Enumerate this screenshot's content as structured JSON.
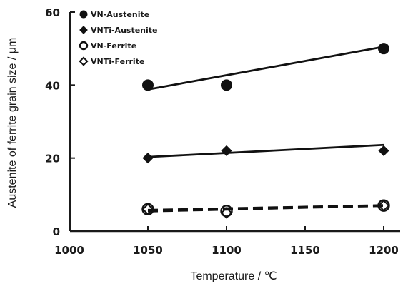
{
  "chart_data": {
    "type": "scatter",
    "title": "",
    "xlabel": "Temperature / ℃",
    "ylabel": "Austenite of ferrite grain size / μm",
    "xlim": [
      1000,
      1200
    ],
    "ylim": [
      0,
      60
    ],
    "x_ticks": [
      1000,
      1050,
      1100,
      1150,
      1200
    ],
    "y_ticks": [
      0,
      20,
      40,
      60
    ],
    "grid": false,
    "legend_position": "top-left",
    "series": [
      {
        "name": "VN-Austenite",
        "marker": "filled-circle",
        "x": [
          1050,
          1100,
          1200
        ],
        "y": [
          40,
          40,
          50
        ],
        "trend": {
          "style": "solid",
          "from": [
            1050,
            38.8
          ],
          "to": [
            1200,
            50.5
          ]
        }
      },
      {
        "name": "VNTi-Austenite",
        "marker": "filled-diamond",
        "x": [
          1050,
          1100,
          1200
        ],
        "y": [
          20,
          22,
          22
        ],
        "trend": {
          "style": "solid",
          "from": [
            1050,
            20.3
          ],
          "to": [
            1200,
            23.6
          ]
        }
      },
      {
        "name": "VN-Ferrite",
        "marker": "open-circle",
        "x": [
          1050,
          1100,
          1200
        ],
        "y": [
          6,
          5.5,
          7
        ],
        "trend": {
          "style": "dashed",
          "from": [
            1050,
            5.8
          ],
          "to": [
            1200,
            7.1
          ]
        }
      },
      {
        "name": "VNTi-Ferrite",
        "marker": "open-diamond",
        "x": [
          1050,
          1100,
          1200
        ],
        "y": [
          6,
          5,
          7
        ],
        "trend": {
          "style": "dashed",
          "from": [
            1050,
            5.4
          ],
          "to": [
            1200,
            6.9
          ]
        }
      }
    ]
  }
}
